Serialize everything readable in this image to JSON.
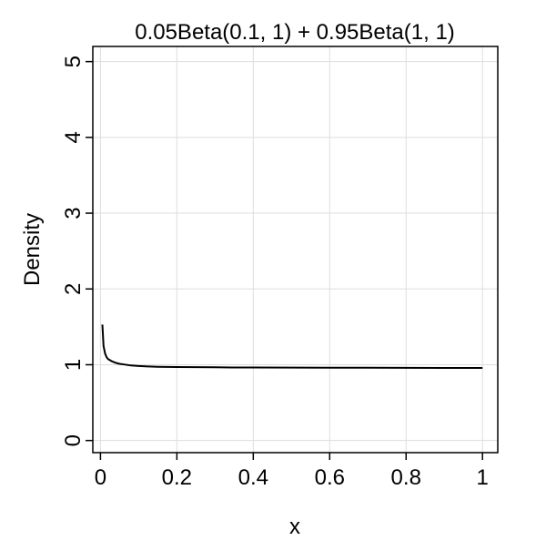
{
  "chart_data": {
    "type": "line",
    "title": "0.05Beta(0.1, 1) + 0.95Beta(1, 1)",
    "xlabel": "x",
    "ylabel": "Density",
    "xlim": [
      -0.02,
      1.04
    ],
    "ylim": [
      -0.16,
      5.2
    ],
    "xticks": [
      0,
      0.2,
      0.4,
      0.6,
      0.8,
      1
    ],
    "xtick_labels": [
      "0",
      "0.2",
      "0.4",
      "0.6",
      "0.8",
      "1"
    ],
    "yticks": [
      0,
      1,
      2,
      3,
      4,
      5
    ],
    "ytick_labels": [
      "0",
      "1",
      "2",
      "3",
      "4",
      "5"
    ],
    "grid": true,
    "series": [
      {
        "color": "#000000",
        "x": [
          0.005,
          0.008,
          0.012,
          0.016,
          0.02,
          0.025,
          0.03,
          0.04,
          0.05,
          0.06,
          0.08,
          0.1,
          0.125,
          0.15,
          0.2,
          0.25,
          0.3,
          0.35,
          0.4,
          0.5,
          0.6,
          0.7,
          0.8,
          0.9,
          1.0
        ],
        "y": [
          1.53,
          1.25,
          1.15,
          1.1,
          1.075,
          1.06,
          1.045,
          1.025,
          1.012,
          1.005,
          0.99,
          0.983,
          0.977,
          0.973,
          0.97,
          0.968,
          0.966,
          0.964,
          0.963,
          0.962,
          0.961,
          0.96,
          0.959,
          0.958,
          0.958
        ]
      }
    ]
  }
}
